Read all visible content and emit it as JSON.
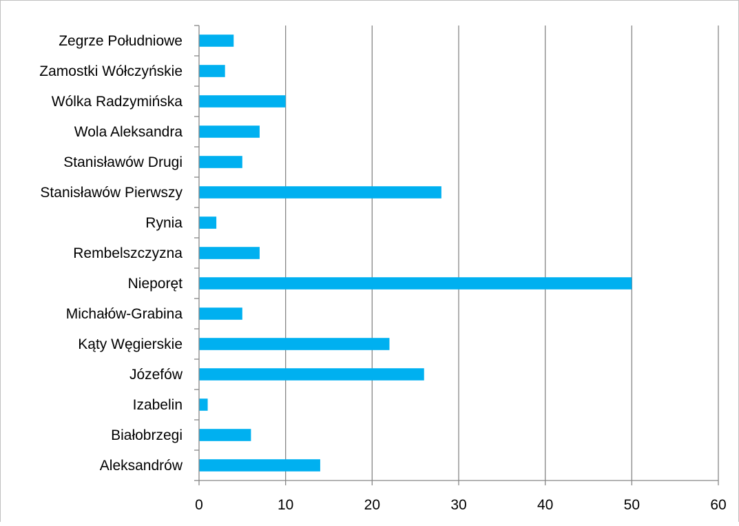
{
  "chart_data": {
    "type": "bar",
    "orientation": "horizontal",
    "categories": [
      "Aleksandrów",
      "Białobrzegi",
      "Izabelin",
      "Józefów",
      "Kąty Węgierskie",
      "Michałów-Grabina",
      "Nieporęt",
      "Rembelszczyzna",
      "Rynia",
      "Stanisławów Pierwszy",
      "Stanisławów Drugi",
      "Wola Aleksandra",
      "Wólka Radzymińska",
      "Zamostki Wółczyńskie",
      "Zegrze Południowe"
    ],
    "values": [
      14,
      6,
      1,
      26,
      22,
      5,
      50,
      7,
      2,
      28,
      5,
      7,
      10,
      3,
      4
    ],
    "x_ticks": [
      "0",
      "10",
      "20",
      "30",
      "40",
      "50",
      "60"
    ],
    "xlim": [
      0,
      60
    ],
    "title": "",
    "xlabel": "",
    "ylabel": "",
    "grid": "vertical major gridlines",
    "legend": "none",
    "colors": {
      "bar": "#00B0F0",
      "grid": "#868686",
      "axis": "#868686"
    }
  }
}
